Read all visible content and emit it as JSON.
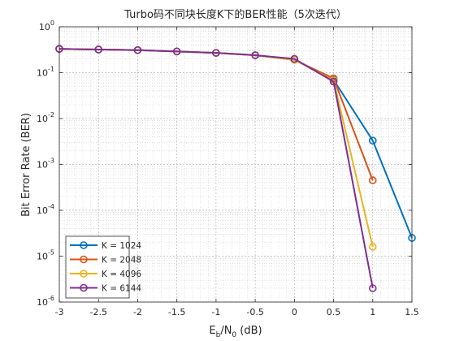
{
  "chart_data": {
    "type": "line",
    "title": "Turbo码不同块长度K下的BER性能（5次迭代）",
    "xlabel": {
      "base": "E",
      "sub1": "b",
      "mid": "/N",
      "sub2": "0",
      "tail": " (dB)"
    },
    "ylabel": "Bit Error Rate (BER)",
    "xlim": [
      -3,
      1.5
    ],
    "ylim_exponents": [
      -6,
      0
    ],
    "y_scale": "log",
    "grid": "major and minor, dotted",
    "legend_position": "bottom-left",
    "x_ticks": [
      "-3",
      "-2.5",
      "-2",
      "-1.5",
      "-1",
      "-0.5",
      "0",
      "0.5",
      "1",
      "1.5"
    ],
    "y_tick_labels": [
      {
        "base": "10",
        "exp": "0"
      },
      {
        "base": "10",
        "exp": "-1"
      },
      {
        "base": "10",
        "exp": "-2"
      },
      {
        "base": "10",
        "exp": "-3"
      },
      {
        "base": "10",
        "exp": "-4"
      },
      {
        "base": "10",
        "exp": "-5"
      },
      {
        "base": "10",
        "exp": "-6"
      }
    ],
    "series": [
      {
        "name": "K = 1024",
        "color": "#0072BD",
        "x": [
          -3,
          -2.5,
          -2,
          -1.5,
          -1,
          -0.5,
          0,
          0.5,
          1,
          1.5
        ],
        "y": [
          0.33,
          0.32,
          0.31,
          0.29,
          0.27,
          0.24,
          0.19,
          0.07,
          0.0033,
          2.5e-05
        ]
      },
      {
        "name": "K = 2048",
        "color": "#D95319",
        "x": [
          -3,
          -2.5,
          -2,
          -1.5,
          -1,
          -0.5,
          0,
          0.5,
          1
        ],
        "y": [
          0.33,
          0.32,
          0.31,
          0.29,
          0.27,
          0.24,
          0.19,
          0.075,
          0.00045
        ]
      },
      {
        "name": "K = 4096",
        "color": "#EDB120",
        "x": [
          -3,
          -2.5,
          -2,
          -1.5,
          -1,
          -0.5,
          0,
          0.5,
          1
        ],
        "y": [
          0.33,
          0.32,
          0.31,
          0.29,
          0.27,
          0.24,
          0.19,
          0.068,
          1.6e-05
        ]
      },
      {
        "name": "K = 6144",
        "color": "#7E2F8E",
        "x": [
          -3,
          -2.5,
          -2,
          -1.5,
          -1,
          -0.5,
          0,
          0.5,
          1
        ],
        "y": [
          0.33,
          0.32,
          0.31,
          0.29,
          0.27,
          0.24,
          0.2,
          0.064,
          2e-06
        ]
      }
    ]
  }
}
